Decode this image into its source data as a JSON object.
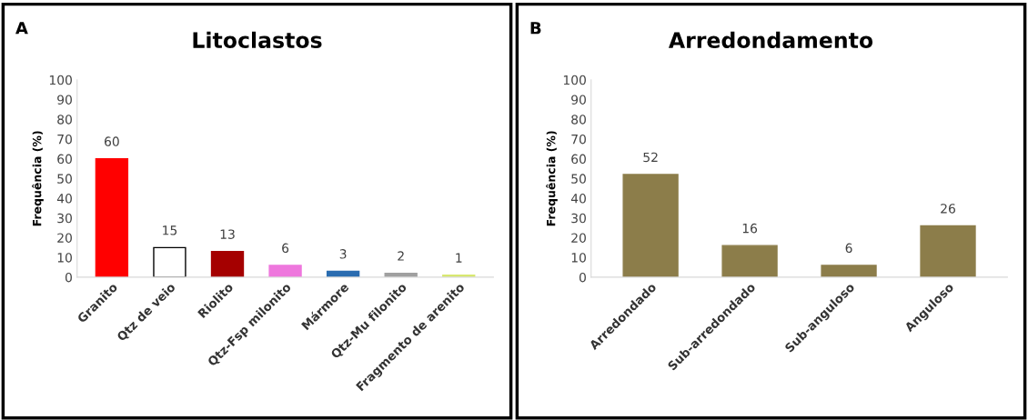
{
  "chart_data": [
    {
      "type": "bar",
      "title": "Litoclastos",
      "ylabel": "Frequência (%)",
      "annotations": [
        "A"
      ],
      "categories": [
        "Granito",
        "Qtz de veio",
        "Riolito",
        "Qtz-Fsp milonito",
        "Mármore",
        "Qtz-Mu filonito",
        "Fragmento de arenito"
      ],
      "values": [
        60,
        15,
        13,
        6,
        3,
        2,
        1
      ],
      "colors": [
        "#ff0000",
        "#ffffff",
        "#a50000",
        "#ee77dd",
        "#2a6cb0",
        "#a0a0a0",
        "#d8e870"
      ],
      "ylim": [
        0,
        100
      ],
      "yticks": [
        0,
        10,
        20,
        30,
        40,
        50,
        60,
        70,
        80,
        90,
        100
      ],
      "data_labels": true,
      "grid": false,
      "legend": false
    },
    {
      "type": "bar",
      "title": "Arredondamento",
      "ylabel": "Frequência (%)",
      "annotations": [
        "B"
      ],
      "categories": [
        "Arredondado",
        "Sub-arredondado",
        "Sub-anguloso",
        "Anguloso"
      ],
      "values": [
        52,
        16,
        6,
        26
      ],
      "color": "#8c7d4a",
      "ylim": [
        0,
        100
      ],
      "yticks": [
        0,
        10,
        20,
        30,
        40,
        50,
        60,
        70,
        80,
        90,
        100
      ],
      "data_labels": true,
      "grid": false,
      "legend": false
    }
  ]
}
